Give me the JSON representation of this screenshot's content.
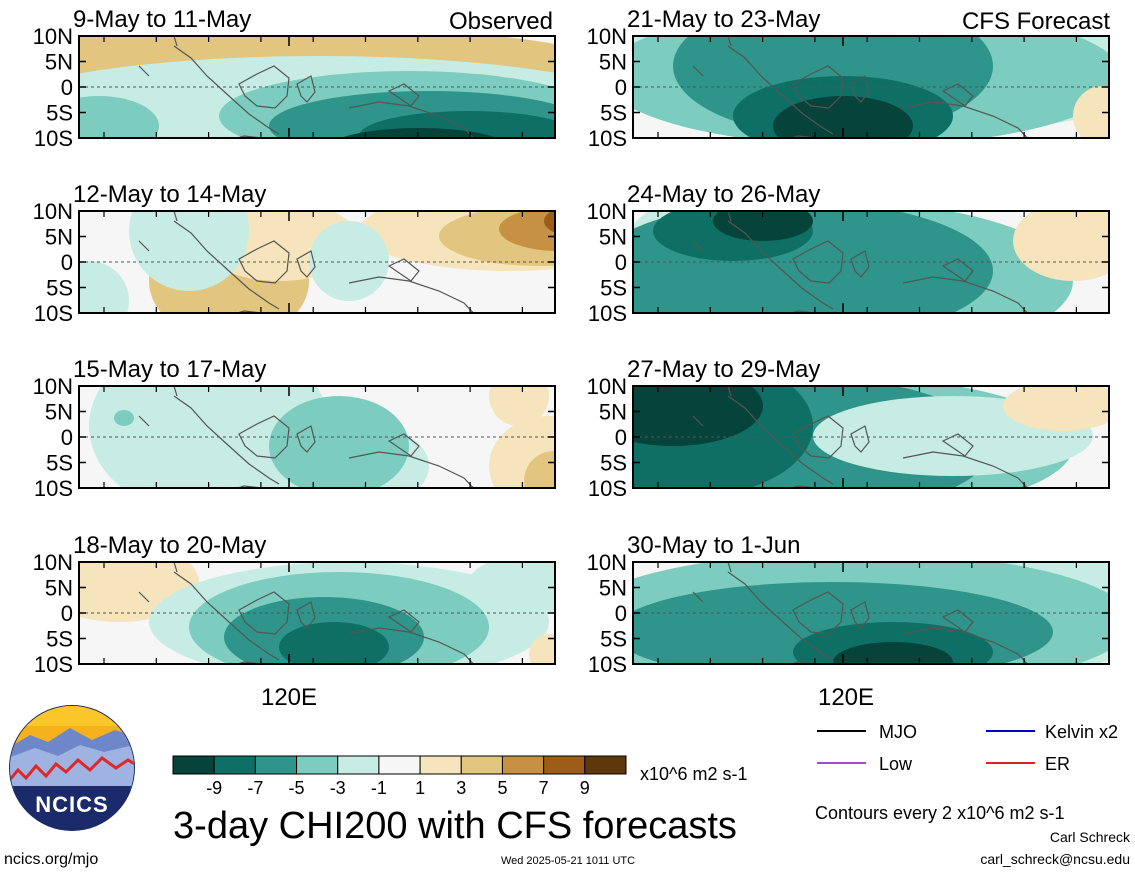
{
  "header": {
    "left_label": "Observed",
    "right_label": "CFS Forecast"
  },
  "panels": [
    {
      "title": "9-May to 11-May"
    },
    {
      "title": "12-May to 14-May"
    },
    {
      "title": "15-May to 17-May"
    },
    {
      "title": "18-May to 20-May"
    },
    {
      "title": "21-May to 23-May"
    },
    {
      "title": "24-May to 26-May"
    },
    {
      "title": "27-May to 29-May"
    },
    {
      "title": "30-May to 1-Jun"
    }
  ],
  "axis": {
    "lat_ticks": [
      "10N",
      "5N",
      "0",
      "5S",
      "10S"
    ],
    "lon_label": "120E"
  },
  "colorbar": {
    "ticks": [
      "-9",
      "-7",
      "-5",
      "-3",
      "-1",
      "1",
      "3",
      "5",
      "7",
      "9"
    ],
    "colors": [
      "#06433b",
      "#0e6f65",
      "#2f9489",
      "#7ccdbf",
      "#c7ece4",
      "#f6f6f6",
      "#f5e4bc",
      "#e2c57e",
      "#c69142",
      "#9b5d17",
      "#5e380a"
    ],
    "units": "x10^6 m2 s-1"
  },
  "title": "3-day CHI200 with CFS forecasts",
  "legend": {
    "items": [
      {
        "label": "MJO",
        "color": "#000000"
      },
      {
        "label": "Kelvin x2",
        "color": "#0000cc"
      },
      {
        "label": "Low",
        "color": "#9b4dca"
      },
      {
        "label": "ER",
        "color": "#dd2222"
      }
    ],
    "note": "Contours every 2 x10^6 m2 s-1"
  },
  "footer": {
    "logo_text": "NCICS",
    "url": "ncics.org/mjo",
    "timestamp": "Wed 2025-05-21 1011 UTC",
    "author": "Carl Schreck",
    "email": "carl_schreck@ncsu.edu"
  }
}
